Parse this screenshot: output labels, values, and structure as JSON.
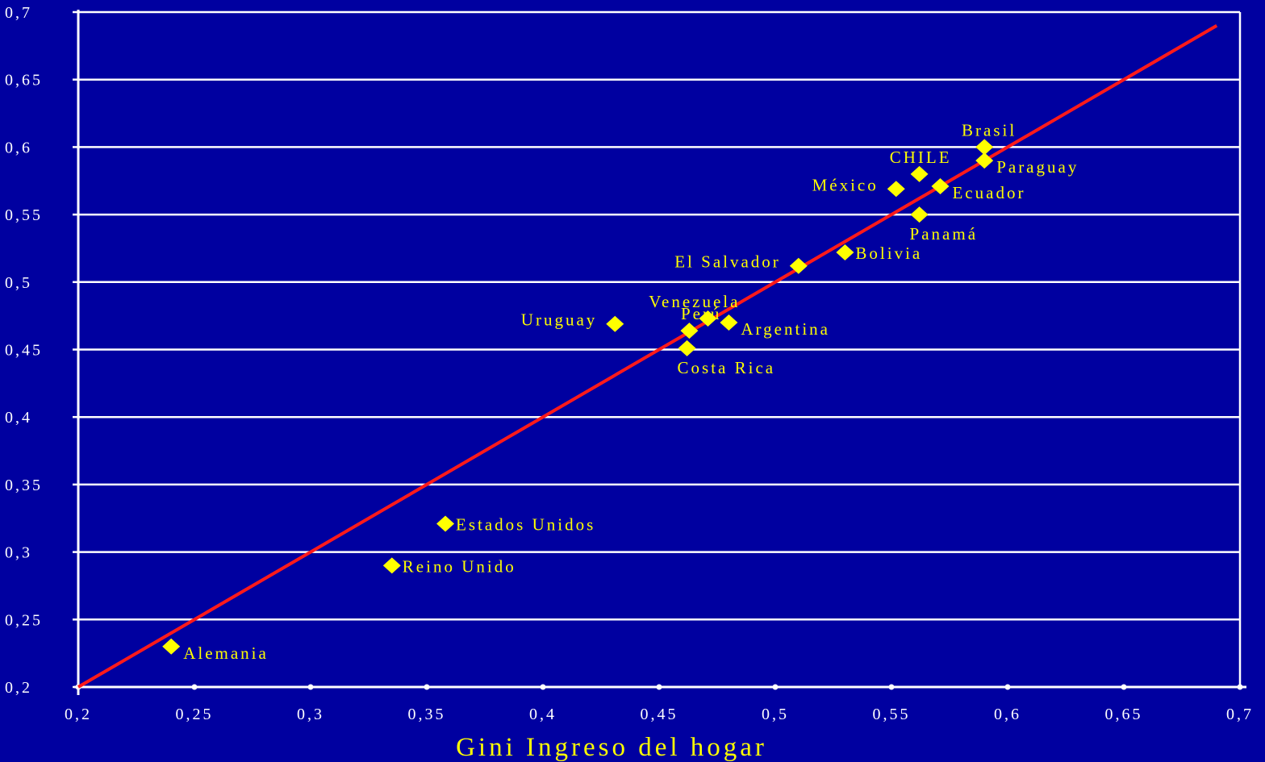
{
  "chart_data": {
    "type": "scatter",
    "title": "",
    "xlabel": "Gini Ingreso del hogar",
    "ylabel": "",
    "xlim": [
      0.2,
      0.7
    ],
    "ylim": [
      0.2,
      0.7
    ],
    "grid": "horizontal",
    "x_ticks": [
      {
        "value": 0.2,
        "label": "0,2"
      },
      {
        "value": 0.25,
        "label": "0,25"
      },
      {
        "value": 0.3,
        "label": "0,3"
      },
      {
        "value": 0.35,
        "label": "0,35"
      },
      {
        "value": 0.4,
        "label": "0,4"
      },
      {
        "value": 0.45,
        "label": "0,45"
      },
      {
        "value": 0.5,
        "label": "0,5"
      },
      {
        "value": 0.55,
        "label": "0,55"
      },
      {
        "value": 0.6,
        "label": "0,6"
      },
      {
        "value": 0.65,
        "label": "0,65"
      },
      {
        "value": 0.7,
        "label": "0,7"
      }
    ],
    "y_ticks": [
      {
        "value": 0.2,
        "label": "0,2"
      },
      {
        "value": 0.25,
        "label": "0,25"
      },
      {
        "value": 0.3,
        "label": "0,3"
      },
      {
        "value": 0.35,
        "label": "0,35"
      },
      {
        "value": 0.4,
        "label": "0,4"
      },
      {
        "value": 0.45,
        "label": "0,45"
      },
      {
        "value": 0.5,
        "label": "0,5"
      },
      {
        "value": 0.55,
        "label": "0,55"
      },
      {
        "value": 0.6,
        "label": "0,6"
      },
      {
        "value": 0.65,
        "label": "0,65"
      },
      {
        "value": 0.7,
        "label": "0,7"
      }
    ],
    "points": [
      {
        "label": "Brasil",
        "x": 0.59,
        "y": 0.6,
        "label_pos": "above-left"
      },
      {
        "label": "Paraguay",
        "x": 0.59,
        "y": 0.59,
        "label_pos": "right-below"
      },
      {
        "label": "CHILE",
        "x": 0.562,
        "y": 0.58,
        "label_pos": "above-left"
      },
      {
        "label": "México",
        "x": 0.552,
        "y": 0.569,
        "label_pos": "left"
      },
      {
        "label": "Ecuador",
        "x": 0.571,
        "y": 0.571,
        "label_pos": "right-below"
      },
      {
        "label": "Panamá",
        "x": 0.562,
        "y": 0.55,
        "label_pos": "below"
      },
      {
        "label": "Bolivia",
        "x": 0.53,
        "y": 0.522,
        "label_pos": "right"
      },
      {
        "label": "El Salvador",
        "x": 0.51,
        "y": 0.512,
        "label_pos": "left"
      },
      {
        "label": "Venezuela",
        "x": 0.471,
        "y": 0.473,
        "label_pos": "above-left"
      },
      {
        "label": "Argentina",
        "x": 0.48,
        "y": 0.47,
        "label_pos": "right-below"
      },
      {
        "label": "Uruguay",
        "x": 0.431,
        "y": 0.469,
        "label_pos": "left"
      },
      {
        "label": "Perú",
        "x": 0.463,
        "y": 0.464,
        "label_pos": "above-left"
      },
      {
        "label": "Costa Rica",
        "x": 0.462,
        "y": 0.451,
        "label_pos": "below"
      },
      {
        "label": "Estados Unidos",
        "x": 0.358,
        "y": 0.321,
        "label_pos": "right"
      },
      {
        "label": "Reino Unido",
        "x": 0.335,
        "y": 0.29,
        "label_pos": "right"
      },
      {
        "label": "Alemania",
        "x": 0.24,
        "y": 0.23,
        "label_pos": "right-below"
      }
    ],
    "trendline": {
      "x": [
        0.2,
        0.69
      ],
      "y": [
        0.2,
        0.69
      ]
    },
    "colors": {
      "background": "#0000a0",
      "grid": "#ffffff",
      "axis": "#ffffff",
      "marker": "#ffff00",
      "trendline": "#ff1a1a",
      "point_label": "#ffff00",
      "tick_label": "#ffffff",
      "xlabel": "#ffff00"
    },
    "marker_shape": "diamond"
  }
}
